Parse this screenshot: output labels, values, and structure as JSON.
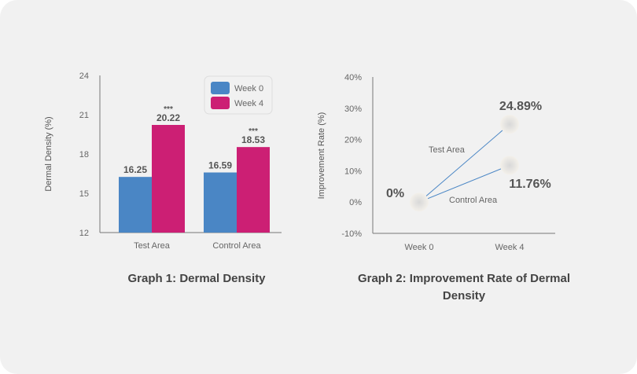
{
  "chart_data": [
    {
      "type": "bar",
      "title": "Graph 1: Dermal Density",
      "ylabel": "Dermal Density (%)",
      "xlabel": "",
      "ylim": [
        12,
        24
      ],
      "yticks": [
        "12",
        "15",
        "18",
        "21",
        "24"
      ],
      "categories": [
        "Test Area",
        "Control Area"
      ],
      "series": [
        {
          "name": "Week 0",
          "color": "#4a86c5",
          "values": [
            16.25,
            16.59
          ],
          "labels": [
            "16.25",
            "16.59"
          ]
        },
        {
          "name": "Week 4",
          "color": "#cc1f74",
          "values": [
            20.22,
            18.53
          ],
          "labels": [
            "20.22",
            "18.53"
          ],
          "significance": [
            "***",
            "***"
          ]
        }
      ],
      "legend": "top-right",
      "grid": false
    },
    {
      "type": "line",
      "title": "Graph 2: Improvement Rate of Dermal Density",
      "ylabel": "Improvement Rate (%)",
      "xlabel": "",
      "ylim": [
        -10,
        40
      ],
      "yticks": [
        "-10%",
        "0%",
        "10%",
        "20%",
        "30%",
        "40%"
      ],
      "x": [
        "Week 0",
        "Week 4"
      ],
      "series": [
        {
          "name": "Test Area",
          "values": [
            0,
            24.89
          ],
          "end_label": "24.89%"
        },
        {
          "name": "Control Area",
          "values": [
            0,
            11.76
          ],
          "end_label": "11.76%"
        }
      ],
      "start_label": "0%",
      "line_color": "#4a86c5",
      "grid": false
    }
  ]
}
